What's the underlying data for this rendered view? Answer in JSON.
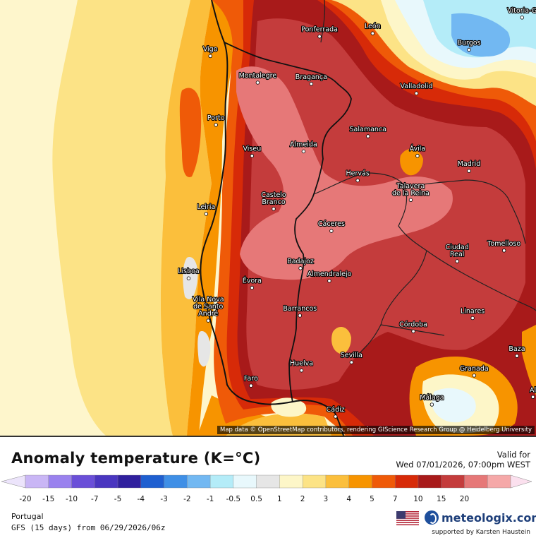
{
  "map": {
    "attribution": "Map data © OpenStreetMap contributors, rendering GIScience Research Group @ Heidelberg University",
    "cities": [
      {
        "name": "Vitoria-G",
        "lon": -2.67,
        "lat": 42.85
      },
      {
        "name": "Ponferrada",
        "lon": -6.6,
        "lat": 42.55
      },
      {
        "name": "León",
        "lon": -5.57,
        "lat": 42.6
      },
      {
        "name": "Burgos",
        "lon": -3.7,
        "lat": 42.34
      },
      {
        "name": "Vigo",
        "lon": -8.72,
        "lat": 42.24
      },
      {
        "name": "Montalegre",
        "lon": -7.8,
        "lat": 41.82
      },
      {
        "name": "Bragança",
        "lon": -6.76,
        "lat": 41.8
      },
      {
        "name": "Valladolid",
        "lon": -4.72,
        "lat": 41.65
      },
      {
        "name": "Porto",
        "lon": -8.61,
        "lat": 41.15
      },
      {
        "name": "Salamanca",
        "lon": -5.66,
        "lat": 40.97
      },
      {
        "name": "Viseu",
        "lon": -7.91,
        "lat": 40.66
      },
      {
        "name": "Almeida",
        "lon": -6.91,
        "lat": 40.73
      },
      {
        "name": "Ávila",
        "lon": -4.7,
        "lat": 40.66
      },
      {
        "name": "Madrid",
        "lon": -3.7,
        "lat": 40.42
      },
      {
        "name": "Hervás",
        "lon": -5.86,
        "lat": 40.27
      },
      {
        "name": "Talavera de la Reina",
        "lon": -4.83,
        "lat": 39.96
      },
      {
        "name": "Castelo Branco",
        "lon": -7.49,
        "lat": 39.82
      },
      {
        "name": "Leiria",
        "lon": -8.8,
        "lat": 39.74
      },
      {
        "name": "Cáceres",
        "lon": -6.37,
        "lat": 39.47
      },
      {
        "name": "Ciudad Real",
        "lon": -3.93,
        "lat": 38.99
      },
      {
        "name": "Tomelloso",
        "lon": -3.02,
        "lat": 39.16
      },
      {
        "name": "Badajoz",
        "lon": -6.97,
        "lat": 38.88
      },
      {
        "name": "Lisboa",
        "lon": -9.14,
        "lat": 38.72
      },
      {
        "name": "Almendralejo",
        "lon": -6.41,
        "lat": 38.68
      },
      {
        "name": "Évora",
        "lon": -7.91,
        "lat": 38.57
      },
      {
        "name": "Vila Nova de Santo André",
        "lon": -8.76,
        "lat": 38.05
      },
      {
        "name": "Barrancos",
        "lon": -6.98,
        "lat": 38.13
      },
      {
        "name": "Linares",
        "lon": -3.63,
        "lat": 38.09
      },
      {
        "name": "Córdoba",
        "lon": -4.78,
        "lat": 37.88
      },
      {
        "name": "Sevilla",
        "lon": -5.98,
        "lat": 37.39
      },
      {
        "name": "Baza",
        "lon": -2.77,
        "lat": 37.49
      },
      {
        "name": "Huelva",
        "lon": -6.95,
        "lat": 37.26
      },
      {
        "name": "Granada",
        "lon": -3.6,
        "lat": 37.18
      },
      {
        "name": "Faro",
        "lon": -7.93,
        "lat": 37.02
      },
      {
        "name": "Málaga",
        "lon": -4.42,
        "lat": 36.72
      },
      {
        "name": "Cádiz",
        "lon": -6.29,
        "lat": 36.53
      },
      {
        "name": "Al",
        "lon": -2.46,
        "lat": 36.84
      }
    ]
  },
  "legend": {
    "title": "Anomaly temperature (K=°C)",
    "valid_label": "Valid for",
    "valid_time": "Wed 07/01/2026, 07:00pm WEST",
    "region": "Portugal",
    "model": "GFS (15 days) from 06/29/2026/06z",
    "brand": "meteologix.com",
    "support": "supported by Karsten Haustein",
    "flag_icon": "us-flag-icon",
    "logo_icon": "meteologix-logo-icon",
    "scale": [
      {
        "label": "-20",
        "color": "#c9b6f5"
      },
      {
        "label": "-15",
        "color": "#9a82ee"
      },
      {
        "label": "-10",
        "color": "#6a4fd8"
      },
      {
        "label": "-7",
        "color": "#4a36c0"
      },
      {
        "label": "-5",
        "color": "#30209e"
      },
      {
        "label": "-4",
        "color": "#1f5fd0"
      },
      {
        "label": "-3",
        "color": "#3f8fe6"
      },
      {
        "label": "-2",
        "color": "#72b8f2"
      },
      {
        "label": "-1",
        "color": "#b4ecf8"
      },
      {
        "label": "-0.5",
        "color": "#e8f8fc"
      },
      {
        "label": "0.5",
        "color": "#e6e6e6"
      },
      {
        "label": "1",
        "color": "#fdf6c8"
      },
      {
        "label": "2",
        "color": "#fce386"
      },
      {
        "label": "3",
        "color": "#fbbf3c"
      },
      {
        "label": "4",
        "color": "#f79400"
      },
      {
        "label": "5",
        "color": "#ef5a08"
      },
      {
        "label": "7",
        "color": "#d72a08"
      },
      {
        "label": "10",
        "color": "#a81a1a"
      },
      {
        "label": "15",
        "color": "#c43c3c"
      },
      {
        "label": "20",
        "color": "#e67878"
      },
      {
        "label": "",
        "color": "#f5a8a8"
      }
    ]
  }
}
